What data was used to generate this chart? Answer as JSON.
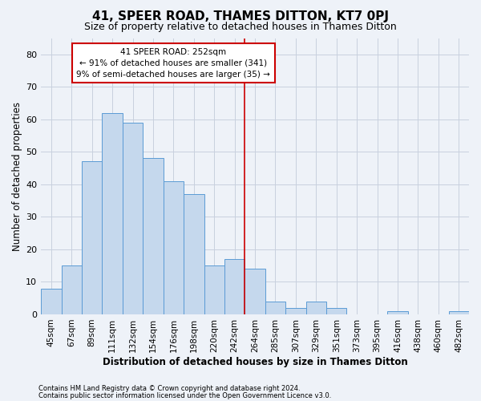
{
  "title": "41, SPEER ROAD, THAMES DITTON, KT7 0PJ",
  "subtitle": "Size of property relative to detached houses in Thames Ditton",
  "xlabel": "Distribution of detached houses by size in Thames Ditton",
  "ylabel": "Number of detached properties",
  "footnote1": "Contains HM Land Registry data © Crown copyright and database right 2024.",
  "footnote2": "Contains public sector information licensed under the Open Government Licence v3.0.",
  "bar_labels": [
    "45sqm",
    "67sqm",
    "89sqm",
    "111sqm",
    "132sqm",
    "154sqm",
    "176sqm",
    "198sqm",
    "220sqm",
    "242sqm",
    "264sqm",
    "285sqm",
    "307sqm",
    "329sqm",
    "351sqm",
    "373sqm",
    "395sqm",
    "416sqm",
    "438sqm",
    "460sqm",
    "482sqm"
  ],
  "bar_values": [
    8,
    15,
    47,
    62,
    59,
    48,
    41,
    37,
    15,
    17,
    14,
    4,
    2,
    4,
    2,
    0,
    0,
    1,
    0,
    0,
    1
  ],
  "bar_color": "#c5d8ed",
  "bar_edge_color": "#5b9bd5",
  "grid_color": "#c8d0de",
  "background_color": "#eef2f8",
  "vline_x": 9.5,
  "vline_color": "#cc0000",
  "annotation_text": "41 SPEER ROAD: 252sqm\n← 91% of detached houses are smaller (341)\n9% of semi-detached houses are larger (35) →",
  "annotation_box_color": "#cc0000",
  "ylim": [
    0,
    85
  ],
  "yticks": [
    0,
    10,
    20,
    30,
    40,
    50,
    60,
    70,
    80
  ],
  "title_fontsize": 11,
  "subtitle_fontsize": 9,
  "xlabel_fontsize": 8.5,
  "ylabel_fontsize": 8.5,
  "tick_fontsize": 7.5,
  "footnote_fontsize": 6,
  "annotation_fontsize": 7.5
}
